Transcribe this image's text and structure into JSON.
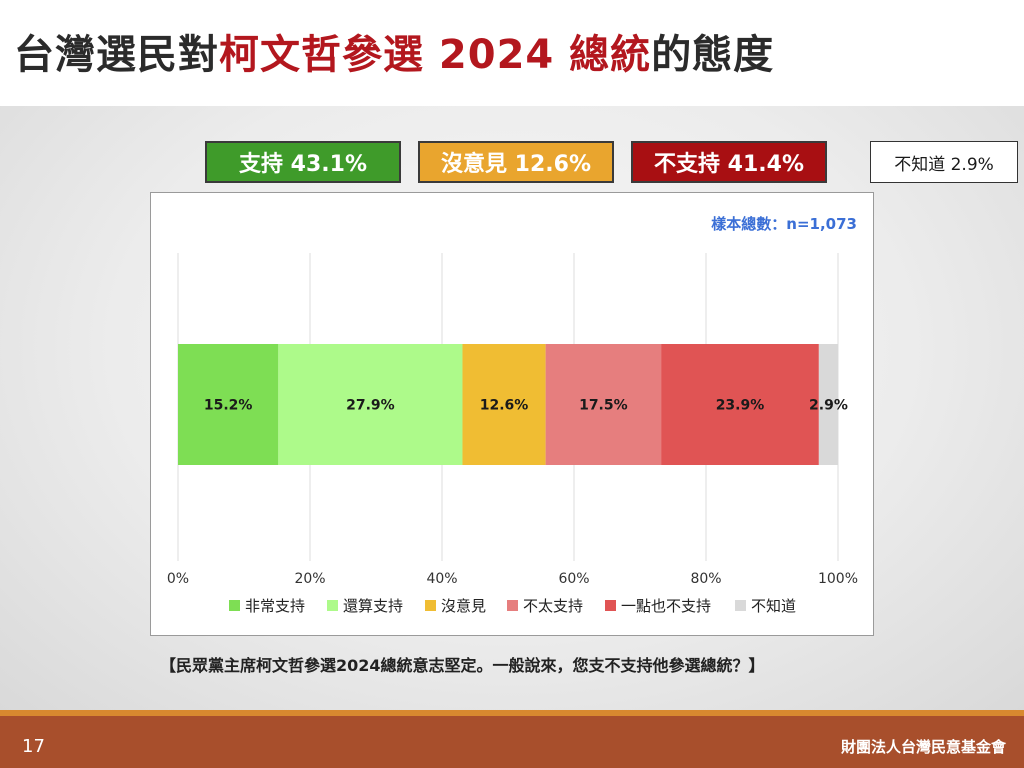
{
  "title": {
    "part1": "台灣選民對",
    "highlight": "柯文哲參選 2024 總統",
    "part2": "的態度"
  },
  "summary": {
    "support": "支持 43.1%",
    "neutral": "沒意見 12.6%",
    "oppose": "不支持 41.4%",
    "unknown": "不知道 2.9%"
  },
  "sample_note": "樣本總數：n=1,073",
  "question": "【民眾黨主席柯文哲參選2024總統意志堅定。一般說來，您支不支持他參選總統？】",
  "footer": {
    "page": "17",
    "org": "財團法人台灣民意基金會"
  },
  "colors": {
    "title_highlight": "#b3171e",
    "support_box": "#3f9b2a",
    "neutral_box": "#e9a52e",
    "oppose_box": "#a80f12",
    "sample_note": "#3b6fd6",
    "footer": "#a84f2c"
  },
  "chart_data": {
    "type": "bar",
    "orientation": "horizontal-stacked",
    "xlim": [
      0,
      100
    ],
    "xticks": [
      "0%",
      "20%",
      "40%",
      "60%",
      "80%",
      "100%"
    ],
    "grid": true,
    "legend_position": "bottom",
    "series": [
      {
        "name": "非常支持",
        "value": 15.2,
        "label": "15.2%",
        "color": "#7ede54"
      },
      {
        "name": "還算支持",
        "value": 27.9,
        "label": "27.9%",
        "color": "#adfa8a"
      },
      {
        "name": "沒意見",
        "value": 12.6,
        "label": "12.6%",
        "color": "#f0bd33"
      },
      {
        "name": "不太支持",
        "value": 17.5,
        "label": "17.5%",
        "color": "#e67e7e"
      },
      {
        "name": "一點也不支持",
        "value": 23.9,
        "label": "23.9%",
        "color": "#e05454"
      },
      {
        "name": "不知道",
        "value": 2.9,
        "label": "2.9%",
        "color": "#d9d9d9"
      }
    ]
  }
}
